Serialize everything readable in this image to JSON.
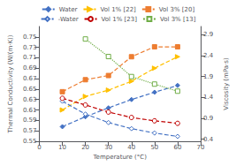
{
  "chart_data": {
    "type": "line",
    "xlabel": "Temperature (°C)",
    "ylabel": "Thermal Conductivity (W/(m·K))",
    "y2label": "Viscosity (mPa·s)",
    "x": [
      10,
      20,
      30,
      40,
      50,
      60
    ],
    "xlim": [
      0,
      70
    ],
    "xticks": [
      0,
      10,
      20,
      30,
      40,
      50,
      60,
      70
    ],
    "ylim": [
      0.55,
      0.77
    ],
    "yticks": [
      0.55,
      0.57,
      0.59,
      0.61,
      0.63,
      0.65,
      0.67,
      0.69,
      0.71,
      0.73,
      0.75
    ],
    "y2lim": [
      0.35,
      3.1
    ],
    "y2ticks": [
      0.4,
      0.9,
      1.4,
      1.9,
      2.4,
      2.9
    ],
    "grid": false,
    "series": [
      {
        "name": "Water",
        "color": "#4472C4",
        "marker": "diamond",
        "line_style": "dashed",
        "values": [
          0.578,
          0.597,
          0.614,
          0.63,
          0.644,
          0.657
        ]
      },
      {
        "name": "Vol 1% [22]",
        "color": "#FFC000",
        "marker": "triangle_right",
        "line_style": "dashed",
        "values": [
          0.61,
          0.636,
          0.648,
          0.665,
          0.69,
          0.712
        ]
      },
      {
        "name": "Vol 3% [20]",
        "color": "#ED7D31",
        "marker": "square",
        "line_style": "dashed",
        "values": [
          0.645,
          0.668,
          0.676,
          0.712,
          0.731,
          0.731
        ]
      },
      {
        "name": "-Water",
        "color": "#4472C4",
        "marker": "open_diamond",
        "line_style": "dashed",
        "axis": "y2",
        "values": [
          1.31,
          1.002,
          0.798,
          0.653,
          0.547,
          0.467
        ]
      },
      {
        "name": "Vol 1% [23]",
        "color": "#C00000",
        "marker": "open_circle",
        "line_style": "dashed",
        "axis": "y2",
        "values": [
          1.38,
          1.22,
          1.05,
          0.92,
          0.84,
          0.78
        ]
      },
      {
        "name": "Vol 3% [13]",
        "color": "#70AD47",
        "marker": "open_square",
        "line_style": "dotted",
        "axis": "y2",
        "values": [
          null,
          2.8,
          2.38,
          1.9,
          1.72,
          1.55
        ]
      }
    ]
  }
}
